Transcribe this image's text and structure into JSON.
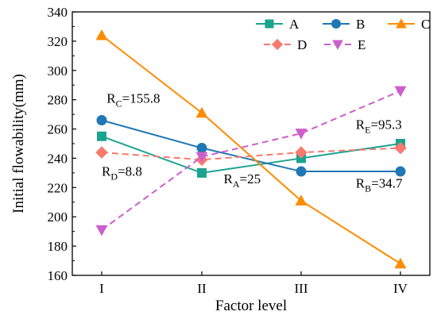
{
  "chart_data": {
    "type": "line",
    "xlabel": "Factor level",
    "ylabel": "Initial flowability(mm)",
    "categories": [
      "I",
      "II",
      "III",
      "IV"
    ],
    "ylim": [
      160,
      340
    ],
    "yticks": [
      160,
      180,
      200,
      220,
      240,
      260,
      280,
      300,
      320,
      340
    ],
    "legend_position": "top-right",
    "series": [
      {
        "name": "A",
        "values": [
          255,
          230,
          240,
          250
        ],
        "color": "#1aa38f",
        "marker": "square",
        "dash": false
      },
      {
        "name": "B",
        "values": [
          266,
          247,
          231,
          231
        ],
        "color": "#1f77b4",
        "marker": "circle",
        "dash": false
      },
      {
        "name": "C",
        "values": [
          324,
          271,
          211,
          168
        ],
        "color": "#ff8c00",
        "marker": "triangle-up",
        "dash": false
      },
      {
        "name": "D",
        "values": [
          244,
          239,
          244,
          247
        ],
        "color": "#f77a6e",
        "marker": "diamond",
        "dash": true
      },
      {
        "name": "E",
        "values": [
          191,
          241,
          257,
          286
        ],
        "color": "#cc5fcc",
        "marker": "triangle-down",
        "dash": true
      }
    ],
    "annotations": [
      {
        "main": "R",
        "sub": "C",
        "rest": "=155.8",
        "x": 0.05,
        "y": 278
      },
      {
        "main": "R",
        "sub": "D",
        "rest": "=8.8",
        "x": 0.0,
        "y": 228
      },
      {
        "main": "R",
        "sub": "A",
        "rest": "=25",
        "x": 1.22,
        "y": 223
      },
      {
        "main": "R",
        "sub": "E",
        "rest": "=95.3",
        "x": 2.55,
        "y": 260
      },
      {
        "main": "R",
        "sub": "B",
        "rest": "=34.7",
        "x": 2.55,
        "y": 220
      }
    ]
  }
}
